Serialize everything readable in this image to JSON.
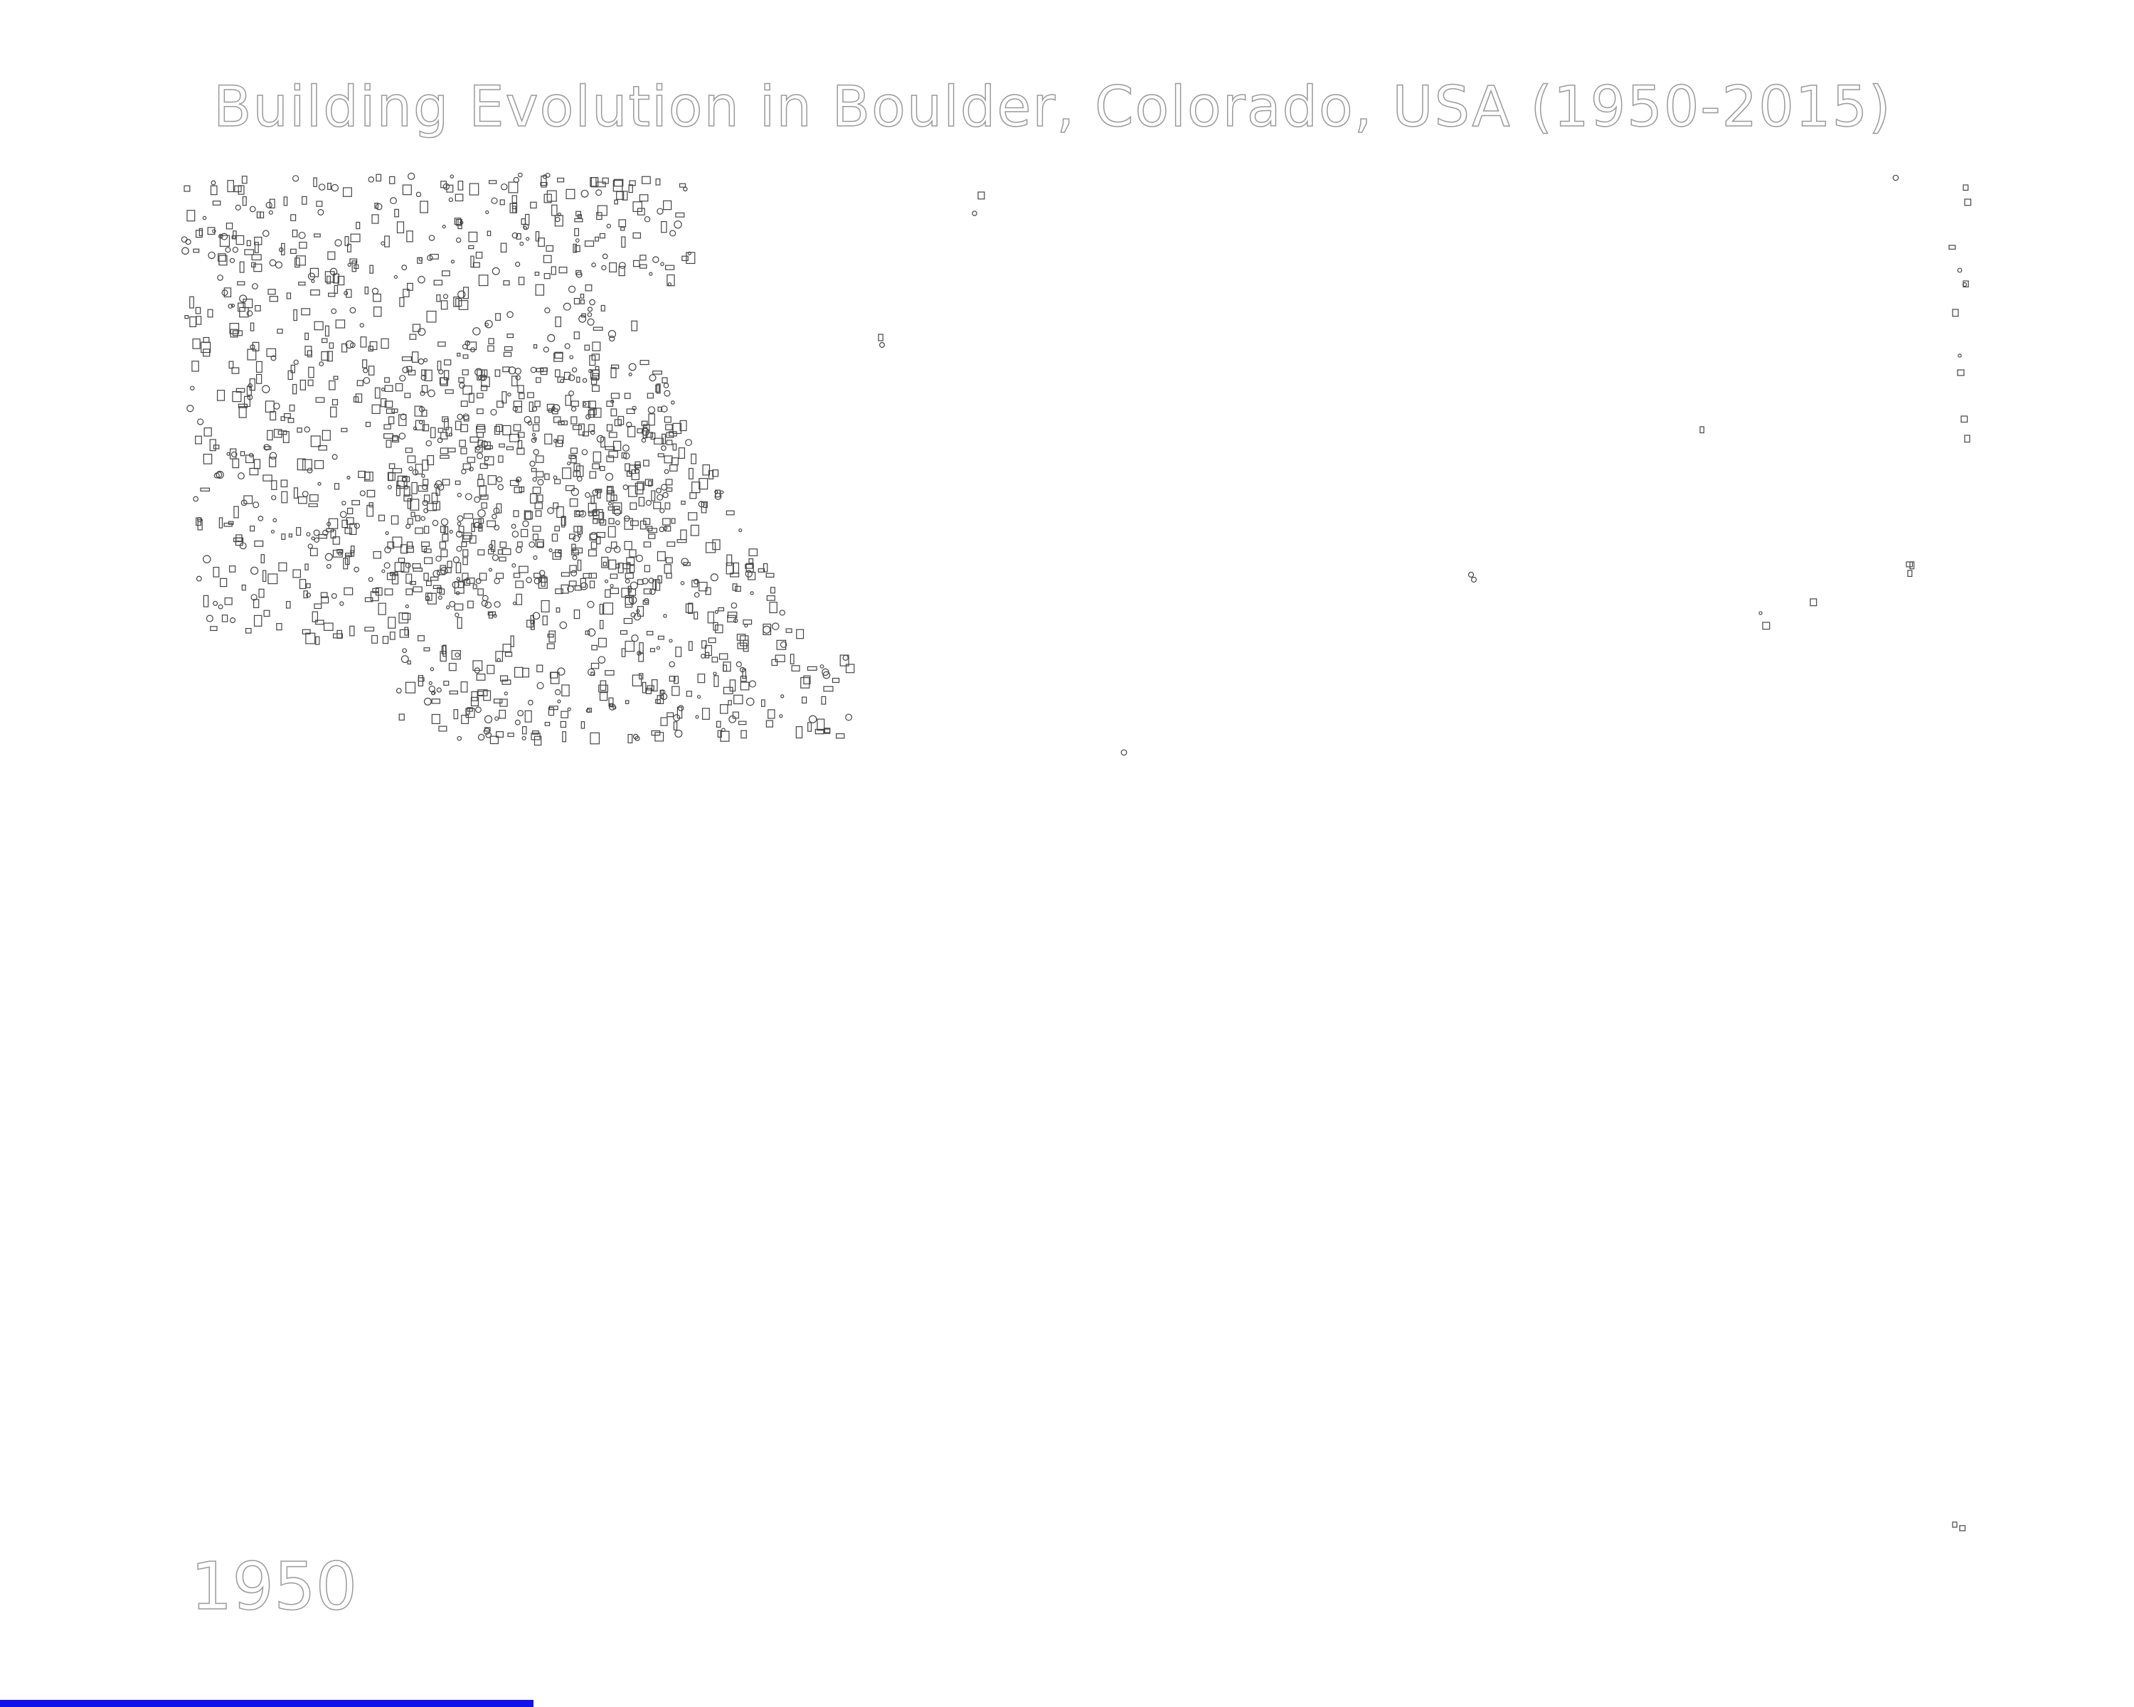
{
  "map": {
    "title": "Building Evolution in Boulder, Colorado, USA (1950-2015)",
    "year_label": "1950",
    "building_outline_color": "#444444",
    "label_stroke_color": "#9a9a9a",
    "timeline_progress": 0.25,
    "progress_color": "#1111ee"
  }
}
